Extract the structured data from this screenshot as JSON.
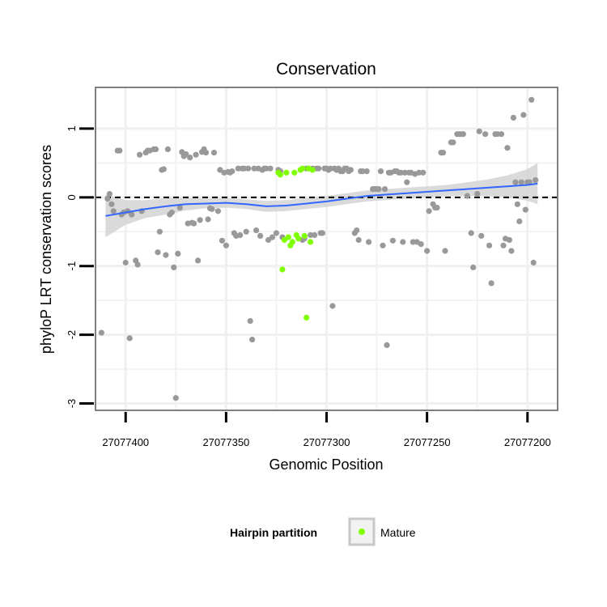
{
  "chart_data": {
    "type": "scatter",
    "title": "Conservation",
    "xlabel": "Genomic Position",
    "ylabel": "phyloP LRT conservation scores",
    "x_reversed": true,
    "xlim": [
      27077415,
      27077185
    ],
    "ylim": [
      -3.1,
      1.6
    ],
    "x_ticks": [
      {
        "value": 27077400,
        "label": "27077400"
      },
      {
        "value": 27077350,
        "label": "27077350"
      },
      {
        "value": 27077300,
        "label": "27077300"
      },
      {
        "value": 27077250,
        "label": "27077250"
      },
      {
        "value": 27077200,
        "label": "27077200"
      }
    ],
    "y_ticks": [
      {
        "value": 1,
        "label": "1"
      },
      {
        "value": 0,
        "label": "0"
      },
      {
        "value": -1,
        "label": "-1"
      },
      {
        "value": -2,
        "label": "-2"
      },
      {
        "value": -3,
        "label": "-3"
      }
    ],
    "grid": true,
    "reference_line": {
      "y": 0,
      "style": "dashed"
    },
    "legend": {
      "title": "Hairpin partition",
      "position": "bottom",
      "entries": [
        {
          "label": "Mature",
          "color": "#7fff00"
        }
      ]
    },
    "colors": {
      "points": "#999999",
      "mature": "#7fff00",
      "smooth": "#3366ff",
      "band": "#d3d3d3",
      "panel_border": "#7f7f7f"
    },
    "series": [
      {
        "name": "Hairpin",
        "color": "#999999",
        "points": [
          [
            27077412,
            -1.97
          ],
          [
            27077409,
            -0.02
          ],
          [
            27077408,
            0.05
          ],
          [
            27077407,
            -0.1
          ],
          [
            27077406,
            -0.2
          ],
          [
            27077404,
            0.68
          ],
          [
            27077403,
            0.68
          ],
          [
            27077402,
            -0.25
          ],
          [
            27077401,
            -0.22
          ],
          [
            27077400,
            -0.95
          ],
          [
            27077399,
            -0.2
          ],
          [
            27077398,
            -2.05
          ],
          [
            27077397,
            -0.25
          ],
          [
            27077395,
            -0.92
          ],
          [
            27077394,
            -0.98
          ],
          [
            27077393,
            0.62
          ],
          [
            27077392,
            -0.2
          ],
          [
            27077390,
            0.65
          ],
          [
            27077389,
            0.68
          ],
          [
            27077388,
            0.68
          ],
          [
            27077386,
            0.7
          ],
          [
            27077385,
            0.7
          ],
          [
            27077384,
            -0.8
          ],
          [
            27077383,
            -0.5
          ],
          [
            27077382,
            0.4
          ],
          [
            27077381,
            0.41
          ],
          [
            27077380,
            -0.84
          ],
          [
            27077379,
            0.7
          ],
          [
            27077378,
            -0.25
          ],
          [
            27077377,
            -0.22
          ],
          [
            27077376,
            -1.02
          ],
          [
            27077375,
            -2.92
          ],
          [
            27077374,
            -0.82
          ],
          [
            27077373,
            -0.15
          ],
          [
            27077372,
            0.66
          ],
          [
            27077371,
            0.6
          ],
          [
            27077370,
            0.63
          ],
          [
            27077369,
            -0.38
          ],
          [
            27077368,
            0.58
          ],
          [
            27077367,
            -0.37
          ],
          [
            27077366,
            -0.38
          ],
          [
            27077365,
            0.62
          ],
          [
            27077364,
            -0.92
          ],
          [
            27077363,
            -0.33
          ],
          [
            27077362,
            0.66
          ],
          [
            27077361,
            0.7
          ],
          [
            27077360,
            0.65
          ],
          [
            27077359,
            -0.32
          ],
          [
            27077358,
            -0.16
          ],
          [
            27077357,
            -0.17
          ],
          [
            27077356,
            0.65
          ],
          [
            27077354,
            -0.2
          ],
          [
            27077353,
            0.4
          ],
          [
            27077352,
            -0.63
          ],
          [
            27077351,
            0.36
          ],
          [
            27077350,
            -0.7
          ],
          [
            27077349,
            0.37
          ],
          [
            27077348,
            0.36
          ],
          [
            27077347,
            0.38
          ],
          [
            27077346,
            -0.52
          ],
          [
            27077345,
            -0.56
          ],
          [
            27077344,
            0.42
          ],
          [
            27077343,
            -0.55
          ],
          [
            27077342,
            0.42
          ],
          [
            27077341,
            0.42
          ],
          [
            27077340,
            -0.5
          ],
          [
            27077339,
            0.42
          ],
          [
            27077338,
            -1.8
          ],
          [
            27077337,
            -2.07
          ],
          [
            27077336,
            0.42
          ],
          [
            27077335,
            -0.48
          ],
          [
            27077334,
            0.42
          ],
          [
            27077333,
            -0.56
          ],
          [
            27077332,
            0.4
          ],
          [
            27077331,
            0.42
          ],
          [
            27077330,
            0.42
          ],
          [
            27077329,
            -0.62
          ],
          [
            27077328,
            0.42
          ],
          [
            27077327,
            -0.58
          ],
          [
            27077325,
            -0.52
          ],
          [
            27077324,
            0.4
          ],
          [
            27077323,
            0.38
          ],
          [
            27077322,
            -0.58
          ],
          [
            27077312,
            -0.62
          ],
          [
            27077311,
            -0.6
          ],
          [
            27077310,
            0.42
          ],
          [
            27077309,
            0.42
          ],
          [
            27077308,
            -0.55
          ],
          [
            27077307,
            0.42
          ],
          [
            27077306,
            -0.55
          ],
          [
            27077305,
            0.42
          ],
          [
            27077304,
            0.42
          ],
          [
            27077303,
            -0.52
          ],
          [
            27077302,
            -0.52
          ],
          [
            27077301,
            0.42
          ],
          [
            27077300,
            0.42
          ],
          [
            27077299,
            0.4
          ],
          [
            27077298,
            0.42
          ],
          [
            27077297,
            -1.58
          ],
          [
            27077296,
            0.42
          ],
          [
            27077295,
            0.4
          ],
          [
            27077294,
            0.42
          ],
          [
            27077293,
            0.38
          ],
          [
            27077292,
            0.38
          ],
          [
            27077291,
            0.42
          ],
          [
            27077290,
            0.42
          ],
          [
            27077289,
            0.38
          ],
          [
            27077288,
            0.4
          ],
          [
            27077286,
            -0.52
          ],
          [
            27077285,
            -0.48
          ],
          [
            27077284,
            -0.62
          ],
          [
            27077283,
            0.38
          ],
          [
            27077282,
            0.38
          ],
          [
            27077280,
            0.38
          ],
          [
            27077279,
            -0.65
          ],
          [
            27077277,
            0.12
          ],
          [
            27077276,
            0.12
          ],
          [
            27077275,
            0.12
          ],
          [
            27077274,
            0.12
          ],
          [
            27077273,
            0.38
          ],
          [
            27077272,
            -0.7
          ],
          [
            27077271,
            0.12
          ],
          [
            27077270,
            -2.15
          ],
          [
            27077269,
            0.36
          ],
          [
            27077268,
            0.36
          ],
          [
            27077267,
            -0.63
          ],
          [
            27077266,
            0.38
          ],
          [
            27077265,
            0.38
          ],
          [
            27077264,
            0.36
          ],
          [
            27077263,
            0.36
          ],
          [
            27077262,
            -0.65
          ],
          [
            27077261,
            0.36
          ],
          [
            27077260,
            0.22
          ],
          [
            27077259,
            0.36
          ],
          [
            27077258,
            0.36
          ],
          [
            27077257,
            -0.65
          ],
          [
            27077256,
            0.34
          ],
          [
            27077255,
            -0.65
          ],
          [
            27077254,
            0.36
          ],
          [
            27077253,
            -0.68
          ],
          [
            27077252,
            0.36
          ],
          [
            27077250,
            -0.78
          ],
          [
            27077249,
            -0.2
          ],
          [
            27077247,
            -0.1
          ],
          [
            27077246,
            -0.15
          ],
          [
            27077245,
            -0.15
          ],
          [
            27077243,
            0.65
          ],
          [
            27077242,
            0.65
          ],
          [
            27077241,
            -0.78
          ],
          [
            27077238,
            0.8
          ],
          [
            27077237,
            0.8
          ],
          [
            27077235,
            0.92
          ],
          [
            27077234,
            0.92
          ],
          [
            27077233,
            0.92
          ],
          [
            27077232,
            0.92
          ],
          [
            27077230,
            0.02
          ],
          [
            27077228,
            -0.52
          ],
          [
            27077227,
            -1.02
          ],
          [
            27077225,
            0.05
          ],
          [
            27077224,
            0.96
          ],
          [
            27077223,
            -0.56
          ],
          [
            27077221,
            0.92
          ],
          [
            27077219,
            -0.7
          ],
          [
            27077218,
            -1.25
          ],
          [
            27077216,
            0.92
          ],
          [
            27077215,
            0.92
          ],
          [
            27077213,
            0.92
          ],
          [
            27077212,
            -0.7
          ],
          [
            27077211,
            -0.6
          ],
          [
            27077210,
            0.72
          ],
          [
            27077209,
            -0.62
          ],
          [
            27077208,
            -0.78
          ],
          [
            27077207,
            1.16
          ],
          [
            27077206,
            0.22
          ],
          [
            27077205,
            -0.1
          ],
          [
            27077204,
            -0.35
          ],
          [
            27077203,
            0.22
          ],
          [
            27077202,
            1.2
          ],
          [
            27077201,
            -0.18
          ],
          [
            27077200,
            0.22
          ],
          [
            27077199,
            0.22
          ],
          [
            27077198,
            1.42
          ],
          [
            27077197,
            -0.95
          ],
          [
            27077196,
            0.25
          ]
        ]
      },
      {
        "name": "Mature",
        "color": "#7fff00",
        "points": [
          [
            27077324,
            0.36
          ],
          [
            27077323,
            0.33
          ],
          [
            27077322,
            -1.05
          ],
          [
            27077321,
            -0.62
          ],
          [
            27077320,
            0.36
          ],
          [
            27077319,
            -0.58
          ],
          [
            27077318,
            -0.7
          ],
          [
            27077317,
            -0.65
          ],
          [
            27077316,
            0.36
          ],
          [
            27077315,
            -0.55
          ],
          [
            27077314,
            -0.6
          ],
          [
            27077313,
            0.4
          ],
          [
            27077312,
            0.42
          ],
          [
            27077311,
            -0.56
          ],
          [
            27077310,
            -1.75
          ],
          [
            27077309,
            0.42
          ],
          [
            27077308,
            -0.65
          ],
          [
            27077307,
            0.4
          ]
        ]
      }
    ],
    "smooth": {
      "method": "loess",
      "color": "#3366ff",
      "x": [
        27077410,
        27077400,
        27077390,
        27077380,
        27077370,
        27077360,
        27077350,
        27077340,
        27077330,
        27077320,
        27077310,
        27077300,
        27077290,
        27077280,
        27077270,
        27077260,
        27077250,
        27077240,
        27077230,
        27077220,
        27077210,
        27077200,
        27077195
      ],
      "y": [
        -0.27,
        -0.22,
        -0.17,
        -0.13,
        -0.1,
        -0.09,
        -0.08,
        -0.1,
        -0.13,
        -0.12,
        -0.09,
        -0.06,
        -0.02,
        0.02,
        0.04,
        0.06,
        0.08,
        0.1,
        0.12,
        0.14,
        0.16,
        0.18,
        0.2
      ],
      "lower": [
        -0.58,
        -0.4,
        -0.3,
        -0.25,
        -0.19,
        -0.16,
        -0.15,
        -0.17,
        -0.21,
        -0.2,
        -0.17,
        -0.14,
        -0.1,
        -0.06,
        -0.04,
        -0.02,
        0.0,
        0.02,
        0.02,
        0.02,
        0.0,
        -0.05,
        -0.1
      ],
      "upper": [
        0.04,
        -0.04,
        -0.04,
        -0.01,
        -0.01,
        -0.02,
        -0.01,
        -0.03,
        -0.05,
        -0.04,
        -0.01,
        0.02,
        0.06,
        0.1,
        0.12,
        0.14,
        0.16,
        0.18,
        0.22,
        0.26,
        0.32,
        0.41,
        0.5
      ]
    }
  }
}
